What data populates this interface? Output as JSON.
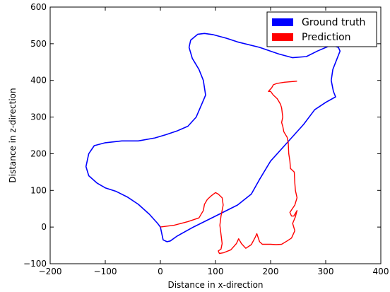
{
  "chart_data": {
    "type": "line",
    "title": "",
    "xlabel": "Distance in x-direction",
    "ylabel": "Distance in z-direction",
    "xlim": [
      -200,
      400
    ],
    "ylim": [
      -100,
      600
    ],
    "xticks": [
      "−200",
      "−100",
      "0",
      "100",
      "200",
      "300",
      "400"
    ],
    "yticks": [
      "−100",
      "0",
      "100",
      "200",
      "300",
      "400",
      "500",
      "600"
    ],
    "grid": false,
    "legend": "top-right",
    "series": [
      {
        "name": "Ground truth",
        "color": "#0000ff",
        "x": [
          0,
          5,
          12,
          18,
          30,
          60,
          100,
          140,
          165,
          180,
          200,
          230,
          260,
          280,
          300,
          318,
          314,
          310,
          313,
          326,
          323,
          310,
          285,
          265,
          240,
          215,
          180,
          140,
          120,
          95,
          80,
          68,
          55,
          52,
          58,
          70,
          78,
          82,
          75,
          65,
          50,
          30,
          10,
          -10,
          -40,
          -70,
          -100,
          -120,
          -130,
          -135,
          -130,
          -115,
          -100,
          -80,
          -60,
          -40,
          -20,
          -5,
          0
        ],
        "y": [
          0,
          -35,
          -40,
          -38,
          -25,
          0,
          30,
          60,
          90,
          130,
          180,
          230,
          280,
          320,
          340,
          355,
          370,
          400,
          430,
          480,
          490,
          496,
          480,
          465,
          462,
          472,
          490,
          505,
          515,
          525,
          528,
          526,
          510,
          490,
          460,
          430,
          400,
          360,
          335,
          300,
          275,
          262,
          252,
          243,
          235,
          235,
          230,
          222,
          200,
          165,
          140,
          120,
          107,
          97,
          82,
          62,
          35,
          10,
          0
        ]
      },
      {
        "name": "Prediction",
        "color": "#ff0000",
        "x": [
          0,
          25,
          50,
          70,
          78,
          80,
          85,
          92,
          100,
          105,
          112,
          114,
          110,
          108,
          110,
          112,
          110,
          105,
          107,
          115,
          128,
          138,
          142,
          147,
          155,
          165,
          172,
          175,
          180,
          185,
          200,
          210,
          220,
          230,
          238,
          244,
          240,
          245,
          248,
          242,
          238,
          235,
          244,
          248,
          245,
          244,
          243,
          236,
          235,
          233,
          232,
          230,
          228,
          224,
          222,
          220,
          222,
          220,
          218,
          212,
          205,
          200,
          196,
          202,
          205,
          212,
          225,
          248
        ],
        "y": [
          0,
          5,
          15,
          25,
          45,
          62,
          75,
          85,
          94,
          90,
          80,
          60,
          30,
          5,
          -20,
          -45,
          -60,
          -65,
          -72,
          -70,
          -62,
          -45,
          -32,
          -45,
          -58,
          -48,
          -28,
          -18,
          -40,
          -47,
          -47,
          -48,
          -47,
          -38,
          -30,
          -10,
          10,
          28,
          45,
          30,
          30,
          40,
          60,
          80,
          100,
          120,
          150,
          160,
          180,
          200,
          230,
          245,
          250,
          260,
          275,
          285,
          300,
          325,
          335,
          350,
          360,
          370,
          370,
          380,
          388,
          392,
          395,
          398
        ]
      }
    ]
  }
}
